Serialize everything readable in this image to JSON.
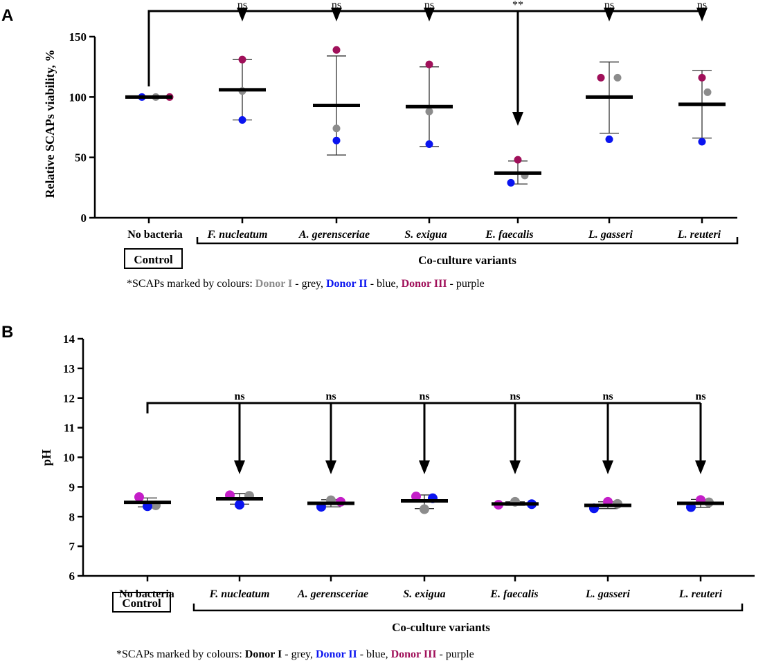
{
  "colors": {
    "grey": "#8c8c8c",
    "blue": "#0a14f0",
    "purpleA": "#a0105a",
    "purpleB": "#c41ec8",
    "axis": "#000000"
  },
  "chart_data": [
    {
      "panel": "A",
      "type": "scatter",
      "ylabel": "Relative SCAPs viability, %",
      "xlabel": "Co-culture variants",
      "ylim": [
        0,
        150
      ],
      "yticks": [
        0,
        50,
        100,
        150
      ],
      "control_label": "Control",
      "categories": [
        "No bacteria",
        "F. nucleatum",
        "A. gerensceriae",
        "S. exigua",
        "E. faecalis",
        "L. gasseri",
        "L. reuteri"
      ],
      "significance": [
        "ns",
        "ns",
        "ns",
        "**",
        "ns",
        "ns"
      ],
      "means": [
        100,
        106,
        93,
        92,
        37,
        100,
        94
      ],
      "error_low": [
        100,
        81,
        52,
        59,
        28,
        70,
        66
      ],
      "error_high": [
        100,
        131,
        134,
        125,
        47,
        129,
        122
      ],
      "series": [
        {
          "name": "Donor I - grey",
          "color": "grey",
          "values": [
            100,
            105,
            74,
            88,
            35,
            116,
            104
          ]
        },
        {
          "name": "Donor II - blue",
          "color": "blue",
          "values": [
            100,
            81,
            64,
            61,
            29,
            65,
            63
          ]
        },
        {
          "name": "Donor III - purple",
          "color": "purpleA",
          "values": [
            100,
            131,
            139,
            127,
            48,
            116,
            116
          ]
        }
      ],
      "note": {
        "prefix": "*SCAPs marked by colours: ",
        "d1": "Donor I",
        "d1_suffix": " - grey, ",
        "d2": "Donor II",
        "d2_suffix": " - blue, ",
        "d3": "Donor III",
        "d3_suffix": " - purple"
      }
    },
    {
      "panel": "B",
      "type": "scatter",
      "ylabel": "pH",
      "xlabel": "Co-culture variants",
      "ylim": [
        6,
        14
      ],
      "yticks": [
        6,
        7,
        8,
        9,
        10,
        11,
        12,
        13,
        14
      ],
      "control_label": "Control",
      "categories": [
        "No bacteria",
        "F. nucleatum",
        "A. gerensceriae",
        "S. exigua",
        "E. faecalis",
        "L. gasseri",
        "L. reuteri"
      ],
      "significance": [
        "ns",
        "ns",
        "ns",
        "ns",
        "ns",
        "ns"
      ],
      "means": [
        8.48,
        8.6,
        8.45,
        8.53,
        8.43,
        8.38,
        8.45
      ],
      "error_low": [
        8.33,
        8.42,
        8.33,
        8.27,
        8.38,
        8.27,
        8.31
      ],
      "error_high": [
        8.63,
        8.78,
        8.57,
        8.73,
        8.5,
        8.5,
        8.58
      ],
      "series": [
        {
          "name": "Donor I - grey",
          "color": "grey",
          "values": [
            8.38,
            8.7,
            8.55,
            8.25,
            8.5,
            8.43,
            8.48
          ]
        },
        {
          "name": "Donor II - blue",
          "color": "blue",
          "values": [
            8.35,
            8.4,
            8.33,
            8.62,
            8.42,
            8.28,
            8.32
          ]
        },
        {
          "name": "Donor III - purple",
          "color": "purpleB",
          "values": [
            8.66,
            8.72,
            8.5,
            8.68,
            8.4,
            8.5,
            8.56
          ]
        }
      ],
      "note": {
        "prefix": "*SCAPs marked by colours: ",
        "d1": "Donor I",
        "d1_suffix": " - grey, ",
        "d2": "Donor II",
        "d2_suffix": " - blue, ",
        "d3": "Donor III",
        "d3_suffix": " - purple"
      }
    }
  ]
}
